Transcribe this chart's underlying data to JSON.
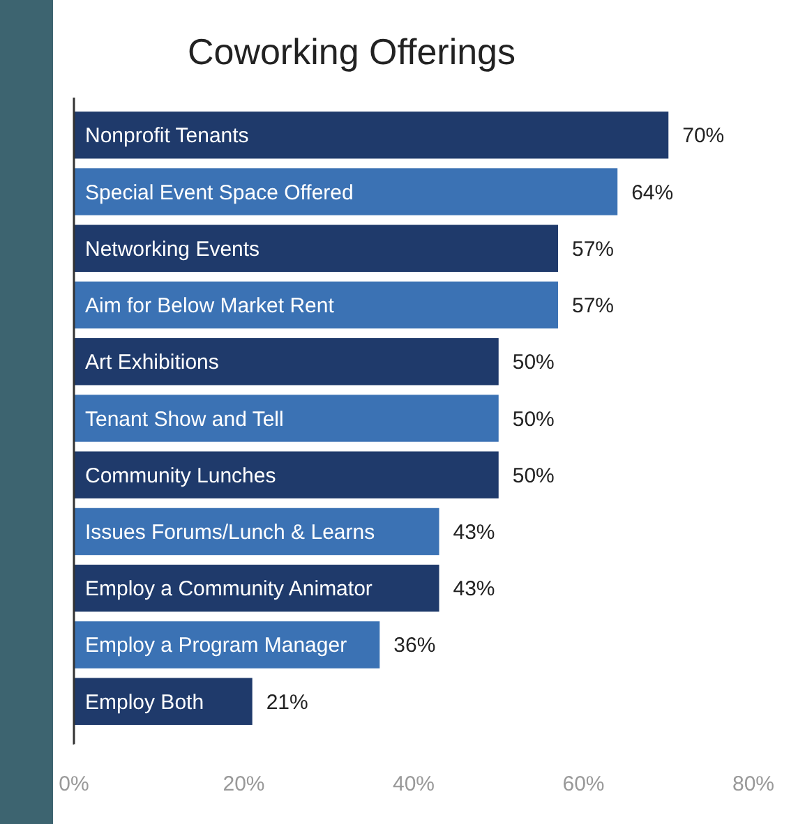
{
  "chart_data": {
    "type": "bar",
    "orientation": "horizontal",
    "title": "Coworking Offerings",
    "categories": [
      "Nonprofit Tenants",
      "Special Event Space Offered",
      "Networking Events",
      "Aim for Below Market Rent",
      "Art Exhibitions",
      "Tenant Show and Tell",
      "Community Lunches",
      "Issues Forums/Lunch & Learns",
      "Employ a Community Animator",
      "Employ a Program Manager",
      "Employ Both"
    ],
    "values": [
      70,
      64,
      57,
      57,
      50,
      50,
      50,
      43,
      43,
      36,
      21
    ],
    "value_labels": [
      "70%",
      "64%",
      "57%",
      "57%",
      "50%",
      "50%",
      "50%",
      "43%",
      "43%",
      "36%",
      "21%"
    ],
    "colors": [
      "#1f3a6b",
      "#3b72b4",
      "#1f3a6b",
      "#3b72b4",
      "#1f3a6b",
      "#3b72b4",
      "#1f3a6b",
      "#3b72b4",
      "#1f3a6b",
      "#3b72b4",
      "#1f3a6b"
    ],
    "xlim": [
      0,
      80
    ],
    "xticks": [
      {
        "value": 0,
        "label": "0%"
      },
      {
        "value": 20,
        "label": "20%"
      },
      {
        "value": 40,
        "label": "40%"
      },
      {
        "value": 60,
        "label": "60%"
      },
      {
        "value": 80,
        "label": "80%"
      }
    ],
    "grid": false
  }
}
